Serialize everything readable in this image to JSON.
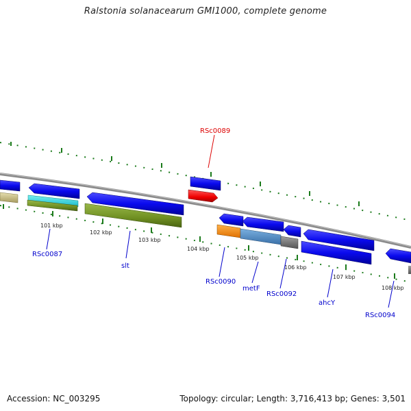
{
  "title": "Ralstonia solanacearum GMI1000, complete genome",
  "footer": {
    "accession": "Accession: NC_003295",
    "info": "Topology: circular; Length: 3,716,413 bp; Genes: 3,501"
  },
  "ticks": [
    "101 kbp",
    "102 kbp",
    "103 kbp",
    "104 kbp",
    "105 kbp",
    "106 kbp",
    "107 kbp",
    "108 kbp"
  ],
  "gene_labels": [
    {
      "id": "rsc0089",
      "text": "RSc0089",
      "color": "#dd0000"
    },
    {
      "id": "rsc0087",
      "text": "RSc0087",
      "color": "#0000cc"
    },
    {
      "id": "slt",
      "text": "slt",
      "color": "#0000cc"
    },
    {
      "id": "rsc0090",
      "text": "RSc0090",
      "color": "#0000cc"
    },
    {
      "id": "metf",
      "text": "metF",
      "color": "#0000cc"
    },
    {
      "id": "rsc0092",
      "text": "RSc0092",
      "color": "#0000cc"
    },
    {
      "id": "ahcy",
      "text": "ahcY",
      "color": "#0000cc"
    },
    {
      "id": "rsc0094",
      "text": "RSc0094",
      "color": "#0000cc"
    }
  ],
  "colors": {
    "gene_blue": "#0a0aee",
    "gene_red": "#ee0000",
    "backbone": "#8a8a8a",
    "tick_green": "#1a7a1a",
    "cyan": "#22cccc",
    "olive": "#7a9a2a",
    "khaki": "#c8c090",
    "orange": "#ff8800",
    "steelblue": "#4a8ac8",
    "gray": "#777777"
  }
}
